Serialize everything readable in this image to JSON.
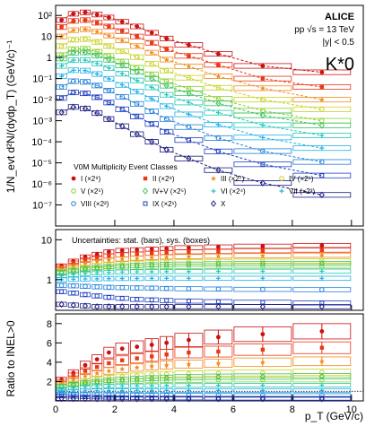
{
  "chart_data": [
    {
      "type": "scatter",
      "title": "ALICE",
      "annotations": [
        "pp √s = 13 TeV",
        "|y| < 0.5",
        "K*0"
      ],
      "ylabel": "1/N_evt d²N/(dydp_T) (GeV/c)⁻¹",
      "yscale": "log",
      "ylim": [
        1e-08,
        300
      ],
      "xlim": [
        0,
        10.4
      ],
      "ytick_labels": [
        "10²",
        "10",
        "1",
        "10⁻¹",
        "10⁻²",
        "10⁻³",
        "10⁻⁴",
        "10⁻⁵",
        "10⁻⁶",
        "10⁻⁷"
      ],
      "legend_title": "V0M Multiplicity Event Classes",
      "legend": [
        "I (×2⁹)",
        "II (×2⁸)",
        "III (×2⁷)",
        "IV (×2⁶)",
        "V (×2⁵)",
        "IV+V (×2⁵)",
        "VI (×2⁴)",
        "VII (×2³)",
        "VIII (×2²)",
        "IX (×2¹)",
        "X"
      ],
      "x_bins": [
        [
          0,
          0.4
        ],
        [
          0.4,
          0.8
        ],
        [
          0.8,
          1.2
        ],
        [
          1.2,
          1.6
        ],
        [
          1.6,
          2.0
        ],
        [
          2.0,
          2.5
        ],
        [
          2.5,
          3.0
        ],
        [
          3.0,
          3.5
        ],
        [
          3.5,
          4.0
        ],
        [
          4.0,
          5.0
        ],
        [
          5.0,
          6.0
        ],
        [
          6.0,
          8.0
        ],
        [
          8.0,
          10.0
        ]
      ],
      "x": [
        0.2,
        0.6,
        1.0,
        1.4,
        1.8,
        2.25,
        2.75,
        3.25,
        3.75,
        4.5,
        5.5,
        7.0,
        9.0
      ],
      "series": [
        {
          "name": "I (×2⁹)",
          "values": [
            60,
            120,
            140,
            110,
            80,
            50,
            30,
            15,
            8,
            4,
            1.5,
            0.4,
            0.2
          ]
        },
        {
          "name": "II (×2⁸)",
          "values": [
            28,
            55,
            60,
            45,
            30,
            18,
            10,
            5,
            2.5,
            1.2,
            0.45,
            0.1,
            0.04
          ]
        },
        {
          "name": "III (×2⁷)",
          "values": [
            10,
            20,
            22,
            17,
            11,
            6.5,
            3.5,
            1.7,
            0.8,
            0.38,
            0.13,
            0.035,
            0.01
          ]
        },
        {
          "name": "IV (×2⁶)",
          "values": [
            3.5,
            7,
            7.5,
            5.5,
            3.5,
            2,
            1.05,
            0.5,
            0.24,
            0.11,
            0.037,
            0.01,
            0.0035
          ]
        },
        {
          "name": "V (×2⁵)",
          "values": [
            1.3,
            2.5,
            2.6,
            1.9,
            1.2,
            0.65,
            0.33,
            0.16,
            0.075,
            0.033,
            0.011,
            0.003,
            0.001
          ]
        },
        {
          "name": "IV+V (×2⁵)",
          "values": [
            0.9,
            1.7,
            1.75,
            1.25,
            0.78,
            0.42,
            0.21,
            0.1,
            0.046,
            0.02,
            0.0067,
            0.0018,
            0.0006
          ]
        },
        {
          "name": "VI (×2⁴)",
          "values": [
            0.4,
            0.75,
            0.75,
            0.52,
            0.32,
            0.17,
            0.082,
            0.038,
            0.017,
            0.0073,
            0.0024,
            0.00062,
            0.0002
          ]
        },
        {
          "name": "VII (×2³)",
          "values": [
            0.13,
            0.25,
            0.24,
            0.165,
            0.098,
            0.05,
            0.024,
            0.011,
            0.0049,
            0.002,
            0.00065,
            0.00016,
            5e-05
          ]
        },
        {
          "name": "VIII (×2²)",
          "values": [
            0.04,
            0.075,
            0.07,
            0.047,
            0.027,
            0.0135,
            0.0063,
            0.0028,
            0.0012,
            0.0005,
            0.00015,
            3.6e-05,
            1.1e-05
          ]
        },
        {
          "name": "IX (×2¹)",
          "values": [
            0.012,
            0.022,
            0.02,
            0.013,
            0.0073,
            0.0035,
            0.0016,
            0.0007,
            0.0003,
            0.00012,
            3.5e-05,
            8.5e-06,
            2.5e-06
          ]
        },
        {
          "name": "X",
          "values": [
            0.0025,
            0.0045,
            0.0038,
            0.0023,
            0.0012,
            0.00055,
            0.00023,
            0.0001,
            4.2e-05,
            1.6e-05,
            4.5e-06,
            1.1e-06,
            3e-07
          ]
        }
      ]
    },
    {
      "type": "scatter",
      "annotation": "Uncertainties: stat. (bars), sys. (boxes)",
      "yscale": "log",
      "ylim": [
        0.17,
        18
      ],
      "xlim": [
        0,
        10.4
      ],
      "ytick_labels": [
        "10",
        "1"
      ],
      "x": [
        0.2,
        0.6,
        1.0,
        1.4,
        1.8,
        2.25,
        2.75,
        3.25,
        3.75,
        4.5,
        5.5,
        7.0,
        9.0
      ],
      "series": [
        {
          "name": "I",
          "values": [
            2.2,
            2.9,
            3.7,
            4.3,
            5.0,
            5.4,
            5.6,
            5.8,
            6.0,
            6.3,
            6.6,
            6.9,
            7.2
          ]
        },
        {
          "name": "II",
          "values": [
            2.0,
            2.6,
            3.1,
            3.5,
            3.9,
            4.2,
            4.4,
            4.6,
            4.8,
            5.0,
            5.1,
            5.3,
            5.5
          ]
        },
        {
          "name": "III",
          "values": [
            1.85,
            2.2,
            2.55,
            2.85,
            3.1,
            3.3,
            3.45,
            3.6,
            3.7,
            3.8,
            3.9,
            4.0,
            4.1
          ]
        },
        {
          "name": "IV",
          "values": [
            1.6,
            1.85,
            2.05,
            2.25,
            2.4,
            2.5,
            2.6,
            2.7,
            2.75,
            2.8,
            2.85,
            2.9,
            2.95
          ]
        },
        {
          "name": "V",
          "values": [
            1.45,
            1.6,
            1.75,
            1.85,
            1.95,
            2.0,
            2.05,
            2.1,
            2.12,
            2.15,
            2.18,
            2.2,
            2.2
          ]
        },
        {
          "name": "IV+V",
          "values": [
            1.5,
            1.7,
            1.88,
            2.0,
            2.12,
            2.2,
            2.28,
            2.35,
            2.4,
            2.45,
            2.5,
            2.52,
            2.55
          ]
        },
        {
          "name": "VI",
          "values": [
            1.25,
            1.35,
            1.42,
            1.48,
            1.52,
            1.55,
            1.57,
            1.58,
            1.6,
            1.6,
            1.62,
            1.62,
            1.63
          ]
        },
        {
          "name": "VII",
          "values": [
            1.0,
            1.02,
            1.04,
            1.05,
            1.06,
            1.07,
            1.07,
            1.08,
            1.08,
            1.08,
            1.08,
            1.08,
            1.08
          ]
        },
        {
          "name": "VIII",
          "values": [
            0.72,
            0.7,
            0.68,
            0.66,
            0.64,
            0.63,
            0.62,
            0.61,
            0.6,
            0.59,
            0.58,
            0.57,
            0.56
          ]
        },
        {
          "name": "IX",
          "values": [
            0.5,
            0.46,
            0.42,
            0.39,
            0.36,
            0.34,
            0.32,
            0.31,
            0.3,
            0.29,
            0.28,
            0.27,
            0.26
          ]
        },
        {
          "name": "X",
          "values": [
            0.24,
            0.23,
            0.22,
            0.21,
            0.21,
            0.21,
            0.21,
            0.21,
            0.21,
            0.21,
            0.21,
            0.21,
            0.21
          ]
        }
      ]
    },
    {
      "type": "scatter",
      "ylabel": "Ratio to INEL>0",
      "xlabel": "p_T (GeV/c)",
      "ylim": [
        0,
        9
      ],
      "xlim": [
        0,
        10.4
      ],
      "ytick_labels": [
        "2",
        "4",
        "6",
        "8"
      ],
      "xtick_labels": [
        "0",
        "2",
        "4",
        "6",
        "8",
        "10"
      ],
      "reference_line": 1,
      "x": [
        0.2,
        0.6,
        1.0,
        1.4,
        1.8,
        2.25,
        2.75,
        3.25,
        3.75,
        4.5,
        5.5,
        7.0,
        9.0
      ],
      "series": [
        {
          "name": "I",
          "values": [
            2.2,
            2.9,
            3.7,
            4.3,
            5.0,
            5.4,
            5.6,
            5.8,
            6.0,
            6.3,
            6.6,
            6.9,
            7.2
          ]
        },
        {
          "name": "II",
          "values": [
            2.0,
            2.6,
            3.1,
            3.5,
            3.9,
            4.2,
            4.4,
            4.6,
            4.8,
            5.0,
            5.1,
            5.3,
            5.5
          ]
        },
        {
          "name": "III",
          "values": [
            1.85,
            2.2,
            2.55,
            2.85,
            3.1,
            3.3,
            3.45,
            3.6,
            3.7,
            3.8,
            3.9,
            4.0,
            4.1
          ]
        },
        {
          "name": "IV",
          "values": [
            1.6,
            1.85,
            2.05,
            2.25,
            2.4,
            2.5,
            2.6,
            2.7,
            2.75,
            2.8,
            2.85,
            2.9,
            2.95
          ]
        },
        {
          "name": "V",
          "values": [
            1.45,
            1.6,
            1.75,
            1.85,
            1.95,
            2.0,
            2.05,
            2.1,
            2.12,
            2.15,
            2.18,
            2.2,
            2.2
          ]
        },
        {
          "name": "IV+V",
          "values": [
            1.5,
            1.7,
            1.88,
            2.0,
            2.12,
            2.2,
            2.28,
            2.35,
            2.4,
            2.45,
            2.5,
            2.52,
            2.55
          ]
        },
        {
          "name": "VI",
          "values": [
            1.25,
            1.35,
            1.42,
            1.48,
            1.52,
            1.55,
            1.57,
            1.58,
            1.6,
            1.6,
            1.62,
            1.62,
            1.63
          ]
        },
        {
          "name": "VII",
          "values": [
            1.0,
            1.02,
            1.04,
            1.05,
            1.06,
            1.07,
            1.07,
            1.08,
            1.08,
            1.08,
            1.08,
            1.08,
            1.08
          ]
        },
        {
          "name": "VIII",
          "values": [
            0.72,
            0.7,
            0.68,
            0.66,
            0.64,
            0.63,
            0.62,
            0.61,
            0.6,
            0.59,
            0.58,
            0.57,
            0.56
          ]
        },
        {
          "name": "IX",
          "values": [
            0.5,
            0.46,
            0.42,
            0.39,
            0.36,
            0.34,
            0.32,
            0.31,
            0.3,
            0.29,
            0.28,
            0.27,
            0.26
          ]
        },
        {
          "name": "X",
          "values": [
            0.24,
            0.23,
            0.22,
            0.21,
            0.21,
            0.21,
            0.21,
            0.21,
            0.21,
            0.21,
            0.21,
            0.21,
            0.21
          ]
        }
      ]
    }
  ],
  "colors": [
    "#cc1010",
    "#e83818",
    "#f08a1c",
    "#c8d020",
    "#8ad028",
    "#3cc060",
    "#20c8b8",
    "#20b0e8",
    "#2080d8",
    "#2040c0",
    "#1a1a80"
  ],
  "markers": [
    "circle",
    "square",
    "star",
    "hollow-circle",
    "hollow-circle",
    "hollow-diamond",
    "cross",
    "cross",
    "hollow-circle",
    "hollow-square",
    "hollow-diamond"
  ]
}
